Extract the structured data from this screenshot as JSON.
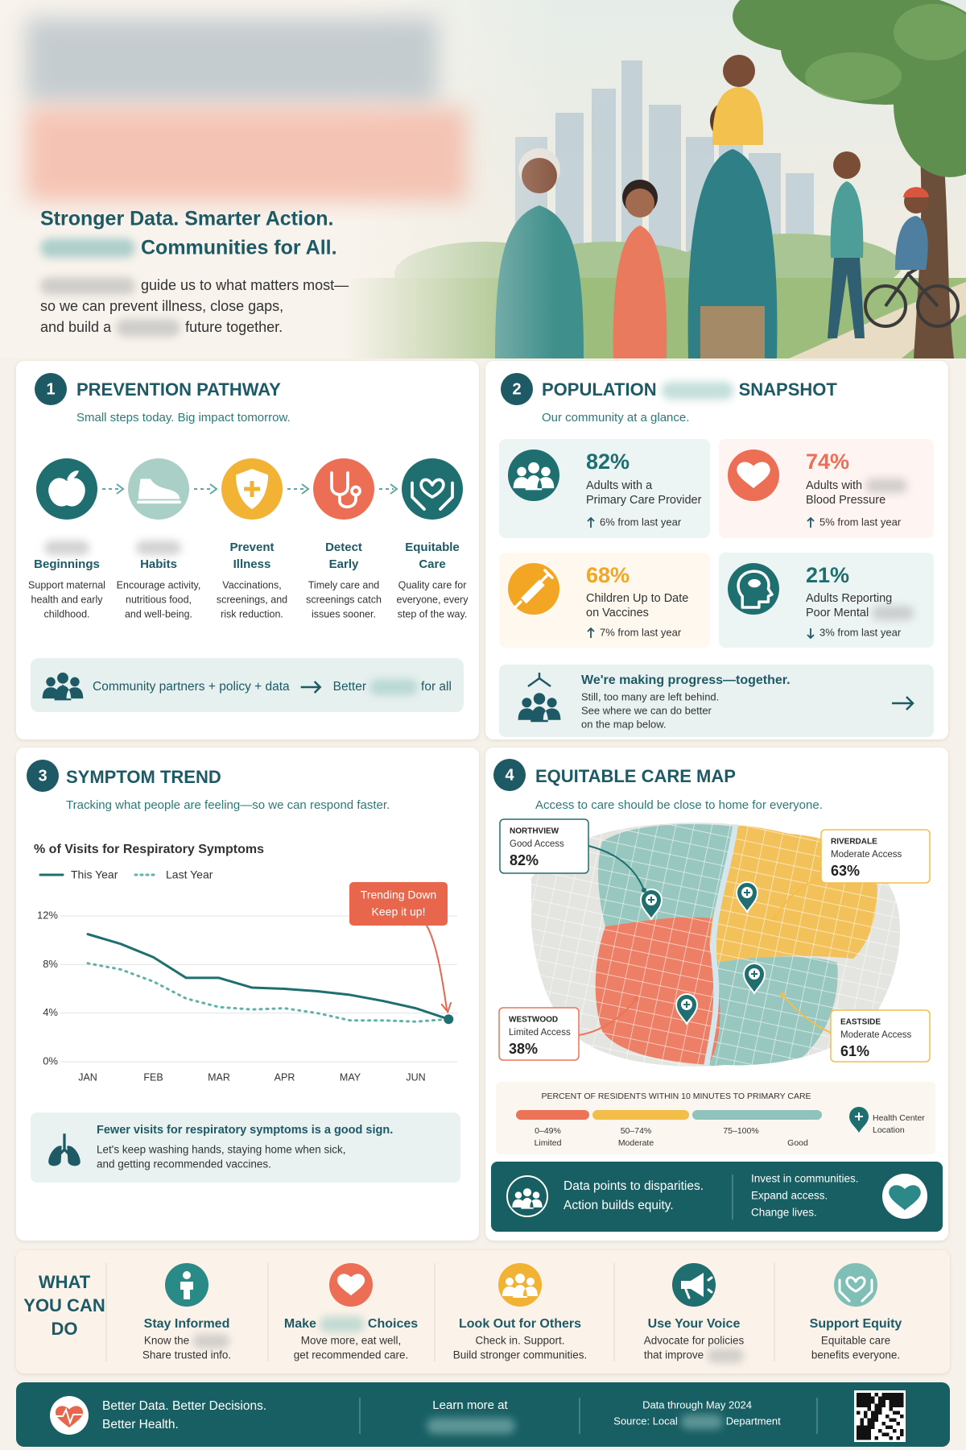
{
  "hero": {
    "title": [
      "Stronger Data. Smarter Action.",
      "Communities for All."
    ],
    "body": {
      "line1": "guide us to what matters most—",
      "line2": "so we can prevent illness, close gaps,",
      "line3a": "and build a",
      "line3b": "future together."
    }
  },
  "prevention": {
    "number": 1,
    "title": "PREVENTION PATHWAY",
    "subtitle": "Small steps today. Big impact tomorrow.",
    "steps": [
      {
        "label": [
          "Beginnings"
        ],
        "description": [
          "Support maternal",
          "health and early",
          "childhood."
        ],
        "color": "#1f6f70"
      },
      {
        "label": [
          "Habits"
        ],
        "description": [
          "Encourage activity,",
          "nutritious food,",
          "and well-being."
        ],
        "color": "#a9cfc6"
      },
      {
        "label": [
          "Prevent",
          "Illness"
        ],
        "description": [
          "Vaccinations,",
          "screenings, and",
          "risk reduction."
        ],
        "color": "#f2b233"
      },
      {
        "label": [
          "Detect",
          "Early"
        ],
        "description": [
          "Timely care and",
          "screenings catch",
          "issues sooner."
        ],
        "color": "#ec6f55"
      },
      {
        "label": [
          "Equitable",
          "Care"
        ],
        "description": [
          "Quality care for",
          "everyone, every",
          "step of the way."
        ],
        "color": "#1f6f70"
      }
    ],
    "banner": {
      "text": "Community partners + policy + data",
      "result": [
        "Better",
        "for all"
      ]
    }
  },
  "snapshot": {
    "number": 2,
    "title": [
      "POPULATION",
      "SNAPSHOT"
    ],
    "subtitle": "Our community at a glance.",
    "stats": [
      {
        "value": "82%",
        "label": [
          "Adults with a",
          "Primary Care Provider"
        ],
        "change": "6% from last year",
        "trend": "up",
        "color": "#1f6f70"
      },
      {
        "value": "74%",
        "label": [
          "Adults with",
          "Blood Pressure"
        ],
        "change": "5% from last year",
        "trend": "up",
        "color": "#ec6f55"
      },
      {
        "value": "68%",
        "label": [
          "Children Up to Date",
          "on Vaccines"
        ],
        "change": "7% from last year",
        "trend": "up",
        "color": "#f2a623"
      },
      {
        "value": "21%",
        "label": [
          "Adults Reporting",
          "Poor Mental"
        ],
        "change": "3% from last year",
        "trend": "down",
        "color": "#1f6f70"
      }
    ],
    "progress": {
      "title": "We're making progress—together.",
      "body": [
        "Still, too many are left behind.",
        "See where we can do better",
        "on the map below."
      ]
    }
  },
  "symptom_trend": {
    "number": 3,
    "title": "SYMPTOM TREND",
    "subtitle": "Tracking what people are feeling—so we can respond faster.",
    "callout": {
      "title": "Fewer visits for respiratory symptoms is a good sign.",
      "body": [
        "Let's keep washing hands, staying home when sick,",
        "and getting recommended vaccines."
      ]
    }
  },
  "chart_data": {
    "type": "line",
    "title": "% of Visits for Respiratory Symptoms",
    "categories": [
      "JAN",
      null,
      "FEB",
      null,
      "MAR",
      null,
      "APR",
      null,
      "MAY",
      null,
      "JUN",
      null
    ],
    "series": [
      {
        "name": "This Year",
        "color": "#1f6f70",
        "style": "solid",
        "values": [
          10.5,
          9.7,
          8.6,
          6.9,
          6.9,
          6.1,
          6.0,
          5.8,
          5.5,
          5.0,
          4.4,
          3.5
        ]
      },
      {
        "name": "Last Year",
        "color": "#5fb3a8",
        "style": "dotted",
        "values": [
          8.1,
          7.6,
          6.6,
          5.2,
          4.5,
          4.3,
          4.4,
          4.0,
          3.4,
          3.4,
          3.3,
          3.5
        ]
      }
    ],
    "ylim": [
      0,
      12
    ],
    "yticks": [
      {
        "value": 0,
        "label": "0%"
      },
      {
        "value": 4,
        "label": "4%"
      },
      {
        "value": 8,
        "label": "8%"
      },
      {
        "value": 12,
        "label": "12%"
      }
    ],
    "grid": true,
    "annotation": [
      "Trending Down",
      "Keep it up!"
    ]
  },
  "care_map": {
    "number": 4,
    "title": "EQUITABLE CARE MAP",
    "subtitle": "Access to care should be close to home for everyone.",
    "areas": [
      {
        "name": "NORTHVIEW",
        "access": "Good Access",
        "value": "82%"
      },
      {
        "name": "RIVERDALE",
        "access": "Moderate Access",
        "value": "63%"
      },
      {
        "name": "WESTWOOD",
        "access": "Limited Access",
        "value": "38%"
      },
      {
        "name": "EASTSIDE",
        "access": "Moderate Access",
        "value": "61%"
      }
    ],
    "legend": {
      "title": "PERCENT OF RESIDENTS WITHIN 10 MINUTES TO PRIMARY CARE",
      "levels": [
        {
          "range": "0–49%",
          "label": "Limited",
          "color": "#ec7358"
        },
        {
          "range": "50–74%",
          "label": "Moderate",
          "color": "#f3bd4a"
        },
        {
          "range": "75–100%",
          "label": "Good",
          "color": "#8fc3bb"
        }
      ],
      "pin": [
        "Health Center",
        "Location"
      ]
    },
    "banner": {
      "left": [
        "Data points to disparities.",
        "Action builds equity."
      ],
      "right": [
        "Invest in communities.",
        "Expand access.",
        "Change lives."
      ]
    }
  },
  "actions": {
    "heading": [
      "WHAT",
      "YOU CAN",
      "DO"
    ],
    "items": [
      {
        "title": [
          "Stay Informed"
        ],
        "description": [
          "Know the",
          "Share trusted info."
        ],
        "color": "#2a8a86"
      },
      {
        "title": [
          "Make",
          "Choices"
        ],
        "description": [
          "Move more, eat well,",
          "get recommended care."
        ],
        "color": "#ec6f55"
      },
      {
        "title": [
          "Look Out for Others"
        ],
        "description": [
          "Check in. Support.",
          "Build stronger communities."
        ],
        "color": "#f2b233"
      },
      {
        "title": [
          "Use Your Voice"
        ],
        "description": [
          "Advocate for policies",
          "that improve"
        ],
        "color": "#1f6f70"
      },
      {
        "title": [
          "Support Equity"
        ],
        "description": [
          "Equitable care",
          "benefits everyone."
        ],
        "color": "#7fbfb5"
      }
    ]
  },
  "footer": {
    "tagline": [
      "Better Data. Better Decisions.",
      "Better Health."
    ],
    "learn_more": "Learn more at",
    "data_through": "Data through May 2024",
    "source": [
      "Source: Local",
      "Department"
    ]
  }
}
